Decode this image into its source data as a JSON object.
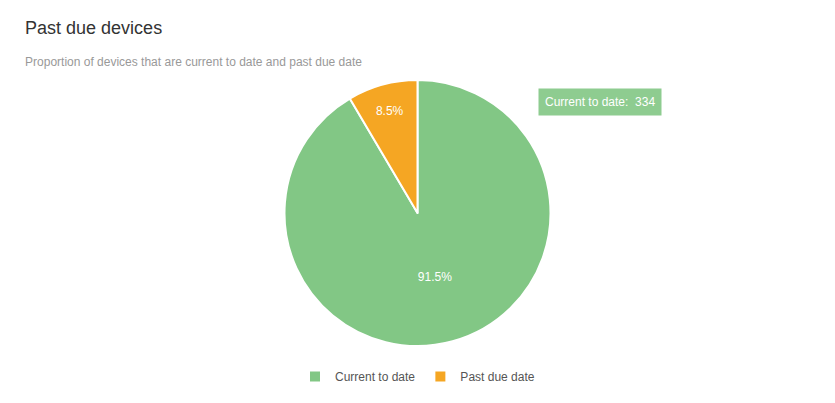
{
  "chart_data": {
    "type": "pie",
    "title": "Past due devices",
    "subtitle": "Proportion of devices that are current to date and past due date",
    "categories": [
      "Current to date",
      "Past due date"
    ],
    "values": [
      91.5,
      8.5
    ],
    "value_labels": [
      "91.5%",
      "8.5%"
    ],
    "colors": [
      "#82c785",
      "#f5a623"
    ],
    "data_labels": true,
    "annotations": [
      "Current to date:  334"
    ],
    "legend": "bottom"
  }
}
